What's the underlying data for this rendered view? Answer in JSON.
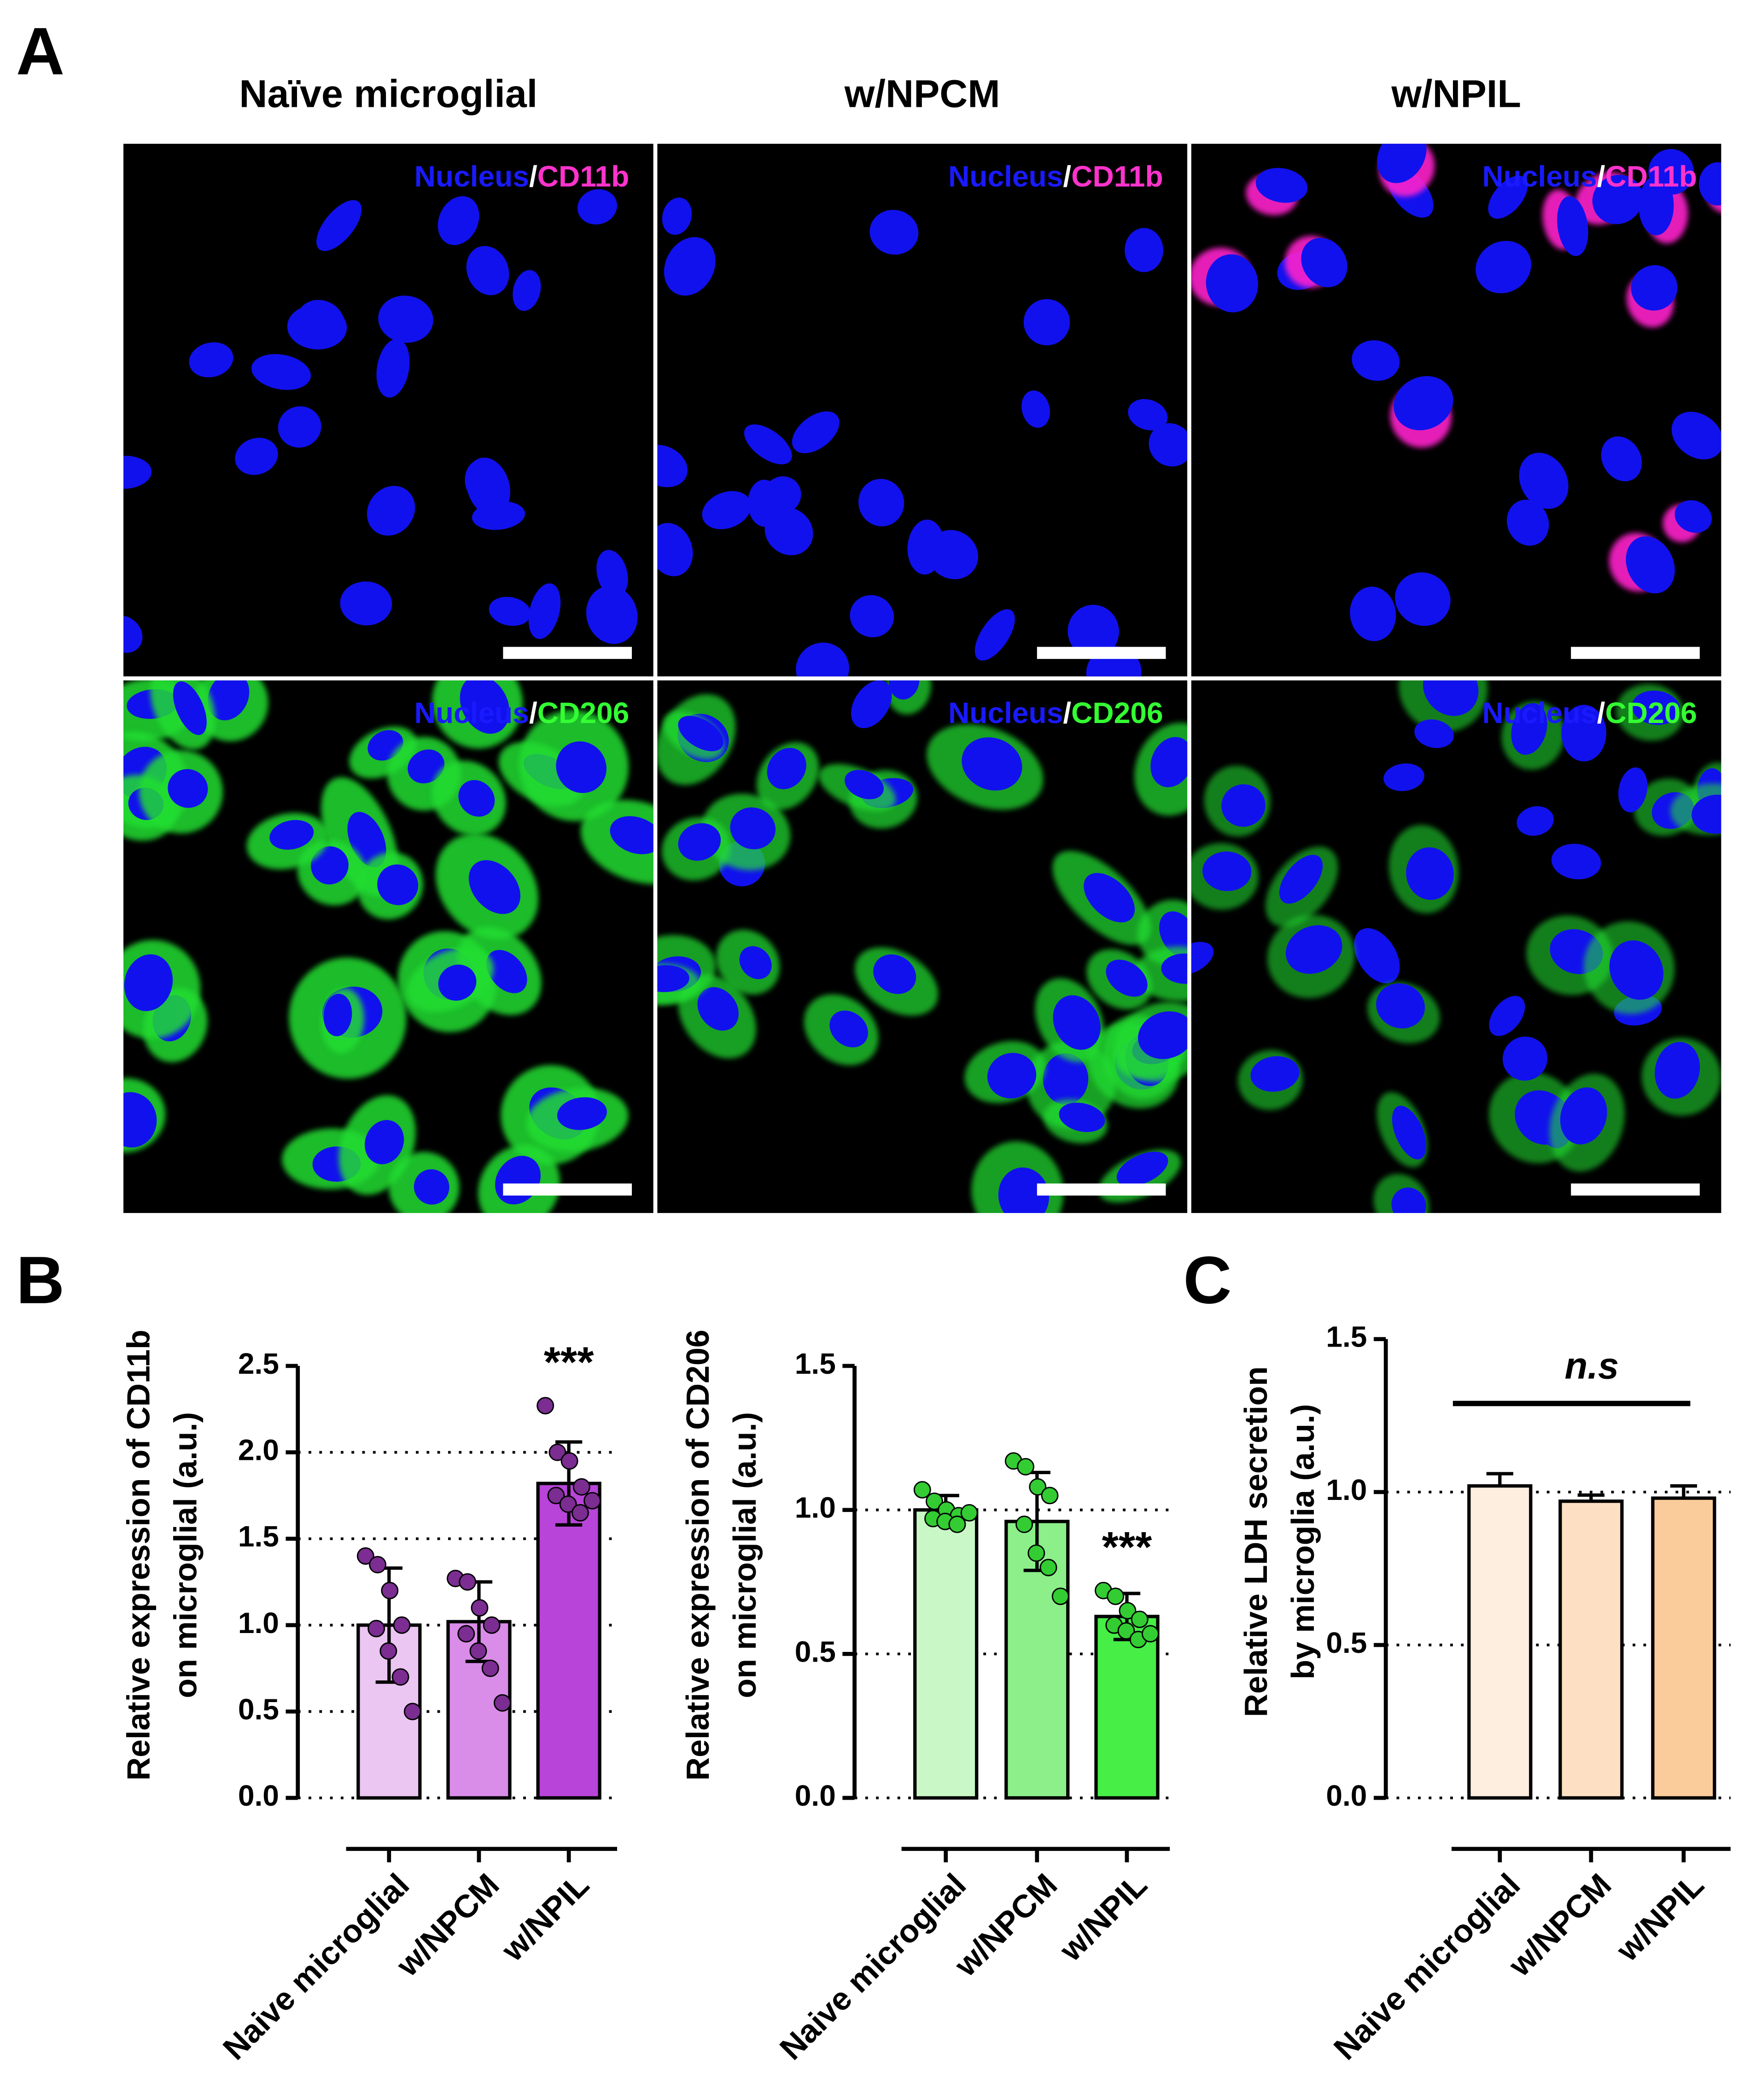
{
  "panels": {
    "a": "A",
    "b": "B",
    "c": "C"
  },
  "images": {
    "column_titles": [
      "Naïve microglial",
      "w/NPCM",
      "w/NPIL"
    ],
    "rows": [
      {
        "stain": [
          "Nucleus",
          "/",
          "CD11b"
        ],
        "colors": [
          "#1a1aff",
          "#ffffff",
          "#ff33cc"
        ]
      },
      {
        "stain": [
          "Nucleus",
          "/",
          "CD206"
        ],
        "colors": [
          "#1a1aff",
          "#ffffff",
          "#33ff33"
        ]
      }
    ]
  },
  "chart_data": [
    {
      "type": "bar",
      "ylabel": [
        "Relative expression of CD11b",
        "on microglial (a.u.)"
      ],
      "categories": [
        "Naive microglial",
        "w/NPCM",
        "w/NPIL"
      ],
      "values": [
        1.0,
        1.02,
        1.82
      ],
      "errors": [
        0.33,
        0.23,
        0.24
      ],
      "colors": [
        "#ebc6f2",
        "#d98ce8",
        "#b844d9"
      ],
      "points": [
        [
          1.4,
          1.35,
          1.2,
          1.0,
          0.98,
          0.85,
          0.7,
          0.5
        ],
        [
          1.27,
          1.25,
          1.1,
          1.0,
          0.95,
          0.85,
          0.75,
          0.55
        ],
        [
          2.27,
          2.0,
          1.95,
          1.8,
          1.75,
          1.7,
          1.65,
          1.72
        ]
      ],
      "point_color": "#7b2d91",
      "error_bars": "both",
      "annotation": "***",
      "ylim": [
        0,
        2.5
      ],
      "yticks": [
        {
          "value": 0,
          "label": "0.0"
        },
        0.5,
        {
          "value": 1,
          "label": "1.0"
        },
        1.5,
        {
          "value": 2,
          "label": "2.0"
        },
        2.5
      ],
      "grid": true
    },
    {
      "type": "bar",
      "ylabel": [
        "Relative expression of CD206",
        "on microglial (a.u.)"
      ],
      "categories": [
        "Naive microglial",
        "w/NPCM",
        "w/NPIL"
      ],
      "values": [
        1.0,
        0.96,
        0.63
      ],
      "errors": [
        0.05,
        0.17,
        0.08
      ],
      "colors": [
        "#c9f8c6",
        "#8cef8a",
        "#46ee46"
      ],
      "points": [
        [
          1.07,
          1.03,
          1.0,
          0.98,
          0.97,
          0.96,
          0.95,
          0.99
        ],
        [
          1.17,
          1.15,
          1.08,
          1.05,
          0.95,
          0.85,
          0.8,
          0.7
        ],
        [
          0.72,
          0.7,
          0.65,
          0.62,
          0.6,
          0.58,
          0.55,
          0.57
        ]
      ],
      "point_color": "#33cc33",
      "error_bars": "both",
      "annotation": "***",
      "ylim": [
        0,
        1.5
      ],
      "yticks": [
        {
          "value": 0,
          "label": "0.0"
        },
        0.5,
        {
          "value": 1,
          "label": "1.0"
        },
        1.5
      ],
      "grid": true
    },
    {
      "type": "bar",
      "ylabel": [
        "Relative LDH secretion",
        "by microglia (a.u.)"
      ],
      "categories": [
        "Naive microglial",
        "w/NPCM",
        "w/NPIL"
      ],
      "values": [
        1.02,
        0.97,
        0.98
      ],
      "errors": [
        0.04,
        0.02,
        0.04
      ],
      "colors": [
        "#fdeedf",
        "#fde0c3",
        "#fbcc9b"
      ],
      "error_bars": "up",
      "annotation": "n.s",
      "ylim": [
        0,
        1.5
      ],
      "yticks": [
        {
          "value": 0,
          "label": "0.0"
        },
        0.5,
        {
          "value": 1,
          "label": "1.0"
        },
        1.5
      ],
      "grid": true
    }
  ]
}
